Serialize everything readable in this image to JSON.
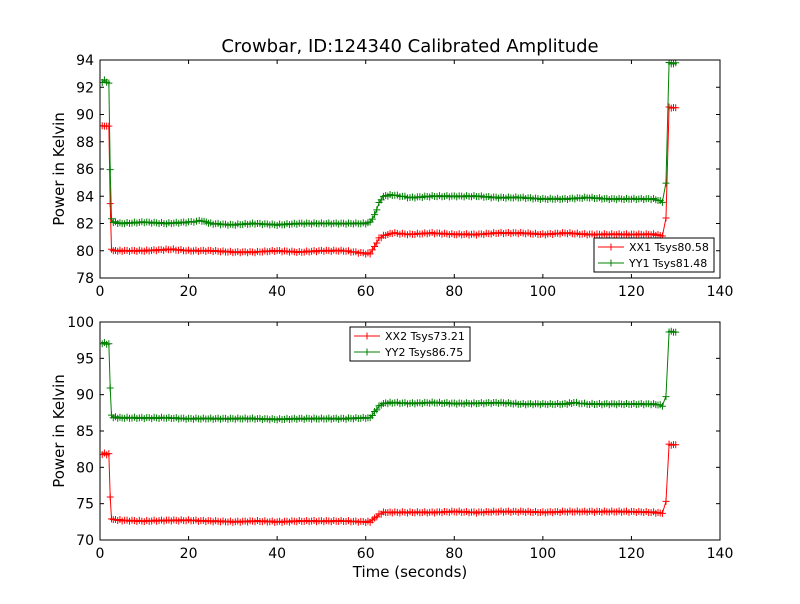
{
  "chart_data": [
    {
      "type": "line",
      "title": "Crowbar, ID:124340 Calibrated Amplitude",
      "xlabel": "",
      "ylabel": "Power in Kelvin",
      "xlim": [
        0,
        140
      ],
      "ylim": [
        78,
        94
      ],
      "xticks": [
        "0",
        "20",
        "40",
        "60",
        "80",
        "100",
        "120",
        "140"
      ],
      "yticks": [
        "78",
        "80",
        "82",
        "84",
        "86",
        "88",
        "90",
        "92",
        "94"
      ],
      "grid": false,
      "legend_position": "lower-right",
      "markers": "plus",
      "series": [
        {
          "name": "XX1 Tsys80.58",
          "color": "#ff0000",
          "points": [
            [
              0.5,
              89.2
            ],
            [
              1,
              89.1
            ],
            [
              1.5,
              89.2
            ],
            [
              2,
              89.1
            ],
            [
              2.3,
              83.5
            ],
            [
              2.6,
              80.1
            ],
            [
              3,
              80.0
            ],
            [
              5,
              80.0
            ],
            [
              10,
              80.0
            ],
            [
              16,
              80.1
            ],
            [
              20,
              80.0
            ],
            [
              25,
              80.0
            ],
            [
              30,
              79.9
            ],
            [
              35,
              79.9
            ],
            [
              40,
              80.0
            ],
            [
              45,
              79.9
            ],
            [
              50,
              80.0
            ],
            [
              55,
              80.0
            ],
            [
              60,
              79.8
            ],
            [
              61,
              79.8
            ],
            [
              62,
              80.3
            ],
            [
              63,
              80.9
            ],
            [
              64,
              81.1
            ],
            [
              66,
              81.3
            ],
            [
              70,
              81.2
            ],
            [
              75,
              81.3
            ],
            [
              80,
              81.2
            ],
            [
              85,
              81.2
            ],
            [
              90,
              81.3
            ],
            [
              95,
              81.3
            ],
            [
              100,
              81.2
            ],
            [
              105,
              81.3
            ],
            [
              110,
              81.2
            ],
            [
              115,
              81.2
            ],
            [
              120,
              81.2
            ],
            [
              125,
              81.2
            ],
            [
              127,
              81.1
            ],
            [
              127.8,
              82.4
            ],
            [
              128.5,
              90.5
            ],
            [
              129,
              90.5
            ],
            [
              130,
              90.5
            ]
          ]
        },
        {
          "name": "YY1 Tsys81.48",
          "color": "#008000",
          "points": [
            [
              0.5,
              92.4
            ],
            [
              1,
              92.5
            ],
            [
              1.5,
              92.4
            ],
            [
              2,
              92.3
            ],
            [
              2.3,
              86.0
            ],
            [
              2.6,
              82.3
            ],
            [
              3,
              82.1
            ],
            [
              5,
              82.0
            ],
            [
              10,
              82.1
            ],
            [
              15,
              82.0
            ],
            [
              20,
              82.1
            ],
            [
              23,
              82.2
            ],
            [
              25,
              82.0
            ],
            [
              30,
              81.9
            ],
            [
              35,
              82.0
            ],
            [
              40,
              81.9
            ],
            [
              45,
              82.0
            ],
            [
              50,
              82.0
            ],
            [
              55,
              82.0
            ],
            [
              60,
              82.0
            ],
            [
              61,
              82.1
            ],
            [
              62,
              82.6
            ],
            [
              63,
              83.5
            ],
            [
              64,
              84.0
            ],
            [
              66,
              84.1
            ],
            [
              70,
              83.9
            ],
            [
              75,
              84.0
            ],
            [
              80,
              84.0
            ],
            [
              85,
              84.0
            ],
            [
              90,
              83.9
            ],
            [
              95,
              83.9
            ],
            [
              100,
              83.8
            ],
            [
              105,
              83.8
            ],
            [
              110,
              83.9
            ],
            [
              115,
              83.8
            ],
            [
              120,
              83.8
            ],
            [
              125,
              83.8
            ],
            [
              127,
              83.6
            ],
            [
              127.8,
              85.0
            ],
            [
              128.5,
              93.8
            ],
            [
              129,
              93.7
            ],
            [
              130,
              93.8
            ]
          ]
        }
      ]
    },
    {
      "type": "line",
      "title": "",
      "xlabel": "Time (seconds)",
      "ylabel": "Power in Kelvin",
      "xlim": [
        0,
        140
      ],
      "ylim": [
        70,
        100
      ],
      "xticks": [
        "0",
        "20",
        "40",
        "60",
        "80",
        "100",
        "120",
        "140"
      ],
      "yticks": [
        "70",
        "75",
        "80",
        "85",
        "90",
        "95",
        "100"
      ],
      "grid": false,
      "legend_position": "upper-center",
      "markers": "plus",
      "series": [
        {
          "name": "XX2 Tsys73.21",
          "color": "#ff0000",
          "points": [
            [
              0.5,
              81.8
            ],
            [
              1,
              81.9
            ],
            [
              1.5,
              81.8
            ],
            [
              2,
              81.8
            ],
            [
              2.3,
              76.0
            ],
            [
              2.6,
              72.9
            ],
            [
              3,
              72.8
            ],
            [
              5,
              72.7
            ],
            [
              10,
              72.6
            ],
            [
              15,
              72.7
            ],
            [
              20,
              72.7
            ],
            [
              25,
              72.6
            ],
            [
              30,
              72.5
            ],
            [
              35,
              72.6
            ],
            [
              40,
              72.5
            ],
            [
              45,
              72.6
            ],
            [
              50,
              72.6
            ],
            [
              55,
              72.6
            ],
            [
              60,
              72.5
            ],
            [
              61,
              72.5
            ],
            [
              62,
              73.0
            ],
            [
              63,
              73.5
            ],
            [
              64,
              73.8
            ],
            [
              66,
              73.8
            ],
            [
              70,
              73.8
            ],
            [
              75,
              73.8
            ],
            [
              80,
              73.9
            ],
            [
              85,
              73.8
            ],
            [
              90,
              73.9
            ],
            [
              95,
              73.9
            ],
            [
              100,
              73.8
            ],
            [
              105,
              73.9
            ],
            [
              110,
              73.9
            ],
            [
              115,
              73.9
            ],
            [
              120,
              73.9
            ],
            [
              125,
              73.8
            ],
            [
              127,
              73.7
            ],
            [
              127.8,
              75.3
            ],
            [
              128.5,
              83.1
            ],
            [
              129,
              83.1
            ],
            [
              130,
              83.1
            ]
          ]
        },
        {
          "name": "YY2 Tsys86.75",
          "color": "#008000",
          "points": [
            [
              0.5,
              97.1
            ],
            [
              1,
              97.1
            ],
            [
              1.5,
              97.0
            ],
            [
              2,
              97.0
            ],
            [
              2.3,
              91.0
            ],
            [
              2.6,
              87.1
            ],
            [
              3,
              86.9
            ],
            [
              5,
              86.8
            ],
            [
              10,
              86.8
            ],
            [
              15,
              86.8
            ],
            [
              20,
              86.7
            ],
            [
              25,
              86.7
            ],
            [
              30,
              86.7
            ],
            [
              35,
              86.7
            ],
            [
              40,
              86.6
            ],
            [
              45,
              86.7
            ],
            [
              50,
              86.7
            ],
            [
              55,
              86.7
            ],
            [
              60,
              86.8
            ],
            [
              61,
              86.8
            ],
            [
              62,
              87.6
            ],
            [
              63,
              88.4
            ],
            [
              64,
              88.8
            ],
            [
              66,
              88.9
            ],
            [
              70,
              88.8
            ],
            [
              75,
              88.9
            ],
            [
              80,
              88.8
            ],
            [
              85,
              88.8
            ],
            [
              90,
              88.9
            ],
            [
              95,
              88.7
            ],
            [
              100,
              88.7
            ],
            [
              105,
              88.7
            ],
            [
              107,
              88.9
            ],
            [
              110,
              88.7
            ],
            [
              115,
              88.7
            ],
            [
              120,
              88.7
            ],
            [
              125,
              88.7
            ],
            [
              127,
              88.5
            ],
            [
              127.8,
              89.8
            ],
            [
              128.5,
              98.6
            ],
            [
              129,
              98.7
            ],
            [
              130,
              98.6
            ]
          ]
        }
      ]
    }
  ]
}
